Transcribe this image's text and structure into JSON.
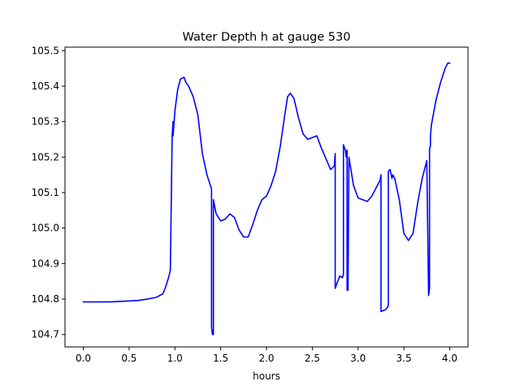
{
  "chart_data": {
    "type": "line",
    "title": "Water Depth h at gauge 530",
    "xlabel": "hours",
    "ylabel": "",
    "xlim": [
      -0.2,
      4.2
    ],
    "ylim": [
      104.665,
      105.51
    ],
    "xticks": [
      0.0,
      0.5,
      1.0,
      1.5,
      2.0,
      2.5,
      3.0,
      3.5,
      4.0
    ],
    "xtick_labels": [
      "0.0",
      "0.5",
      "1.0",
      "1.5",
      "2.0",
      "2.5",
      "3.0",
      "3.5",
      "4.0"
    ],
    "yticks": [
      104.7,
      104.8,
      104.9,
      105.0,
      105.1,
      105.2,
      105.3,
      105.4,
      105.5
    ],
    "ytick_labels": [
      "104.7",
      "104.8",
      "104.9",
      "105.0",
      "105.1",
      "105.2",
      "105.3",
      "105.4",
      "105.5"
    ],
    "grid": false,
    "series": [
      {
        "color": "#0000ff",
        "x": [
          0.0,
          0.3,
          0.6,
          0.7,
          0.8,
          0.87,
          0.9,
          0.93,
          0.95,
          0.97,
          0.98,
          0.98,
          1.0,
          1.03,
          1.06,
          1.1,
          1.12,
          1.15,
          1.2,
          1.25,
          1.3,
          1.35,
          1.4,
          1.4,
          1.41,
          1.42,
          1.42,
          1.45,
          1.5,
          1.55,
          1.6,
          1.65,
          1.7,
          1.75,
          1.8,
          1.85,
          1.9,
          1.95,
          2.0,
          2.05,
          2.1,
          2.15,
          2.2,
          2.23,
          2.26,
          2.3,
          2.35,
          2.4,
          2.45,
          2.5,
          2.55,
          2.6,
          2.65,
          2.7,
          2.74,
          2.75,
          2.75,
          2.77,
          2.8,
          2.83,
          2.84,
          2.84,
          2.86,
          2.87,
          2.88,
          2.88,
          2.89,
          2.9,
          2.95,
          3.0,
          3.05,
          3.1,
          3.15,
          3.2,
          3.24,
          3.25,
          3.25,
          3.3,
          3.33,
          3.33,
          3.35,
          3.37,
          3.38,
          3.4,
          3.45,
          3.5,
          3.55,
          3.6,
          3.65,
          3.7,
          3.75,
          3.77,
          3.78,
          3.78,
          3.79,
          3.79,
          3.8,
          3.85,
          3.9,
          3.95,
          3.98,
          4.0
        ],
        "y": [
          104.792,
          104.792,
          104.796,
          104.8,
          104.805,
          104.815,
          104.835,
          104.86,
          104.88,
          105.26,
          105.3,
          105.26,
          105.33,
          105.39,
          105.42,
          105.425,
          105.41,
          105.4,
          105.37,
          105.32,
          105.21,
          105.15,
          105.11,
          104.72,
          104.7,
          104.7,
          105.08,
          105.04,
          105.02,
          105.025,
          105.04,
          105.03,
          104.995,
          104.975,
          104.975,
          105.01,
          105.05,
          105.08,
          105.09,
          105.12,
          105.16,
          105.23,
          105.32,
          105.37,
          105.38,
          105.365,
          105.31,
          105.265,
          105.25,
          105.255,
          105.26,
          105.225,
          105.195,
          105.165,
          105.175,
          105.21,
          104.83,
          104.845,
          104.865,
          104.86,
          104.87,
          105.235,
          105.22,
          105.2,
          105.22,
          104.825,
          104.825,
          105.2,
          105.12,
          105.085,
          105.08,
          105.075,
          105.09,
          105.115,
          105.135,
          105.15,
          104.765,
          104.77,
          104.78,
          105.16,
          105.165,
          105.14,
          105.15,
          105.14,
          105.08,
          104.985,
          104.965,
          104.985,
          105.07,
          105.14,
          105.19,
          104.81,
          104.83,
          105.225,
          105.23,
          105.26,
          105.29,
          105.36,
          105.41,
          105.45,
          105.465,
          105.465
        ]
      }
    ]
  }
}
